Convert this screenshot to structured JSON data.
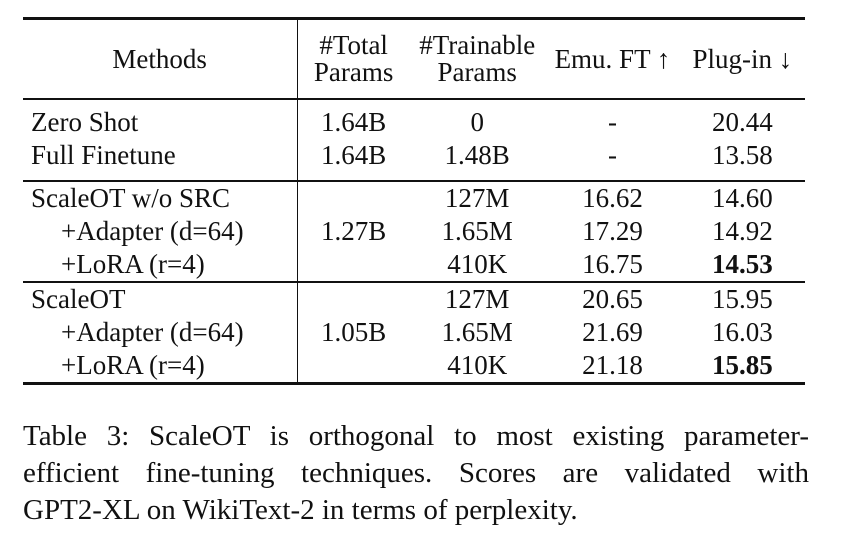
{
  "table": {
    "headers": {
      "methods": "Methods",
      "total_line1": "#Total",
      "total_line2": "Params",
      "trainable_line1": "#Trainable",
      "trainable_line2": "Params",
      "emu": "Emu. FT ↑",
      "plugin": "Plug-in ↓"
    },
    "group1": {
      "zero_shot": {
        "method": "Zero Shot",
        "total": "1.64B",
        "trainable": "0",
        "emu": "-",
        "plugin": "20.44"
      },
      "full_finetune": {
        "method": "Full Finetune",
        "total": "1.64B",
        "trainable": "1.48B",
        "emu": "-",
        "plugin": "13.58"
      }
    },
    "group2": {
      "total": "1.27B",
      "base": {
        "method": "ScaleOT w/o SRC",
        "trainable": "127M",
        "emu": "16.62",
        "plugin": "14.60"
      },
      "adapter": {
        "method": "+Adapter (d=64)",
        "trainable": "1.65M",
        "emu": "17.29",
        "plugin": "14.92"
      },
      "lora": {
        "method": "+LoRA (r=4)",
        "trainable": "410K",
        "emu": "16.75",
        "plugin": "14.53"
      }
    },
    "group3": {
      "total": "1.05B",
      "base": {
        "method": "ScaleOT",
        "trainable": "127M",
        "emu": "20.65",
        "plugin": "15.95"
      },
      "adapter": {
        "method": "+Adapter (d=64)",
        "trainable": "1.65M",
        "emu": "21.69",
        "plugin": "16.03"
      },
      "lora": {
        "method": "+LoRA (r=4)",
        "trainable": "410K",
        "emu": "21.18",
        "plugin": "15.85"
      }
    }
  },
  "caption": {
    "line1": "Table 3: ScaleOT is orthogonal to most existing parameter-",
    "line2": "efficient fine-tuning techniques. Scores are validated with",
    "line3": "GPT2-XL on WikiText-2 in terms of perplexity."
  }
}
